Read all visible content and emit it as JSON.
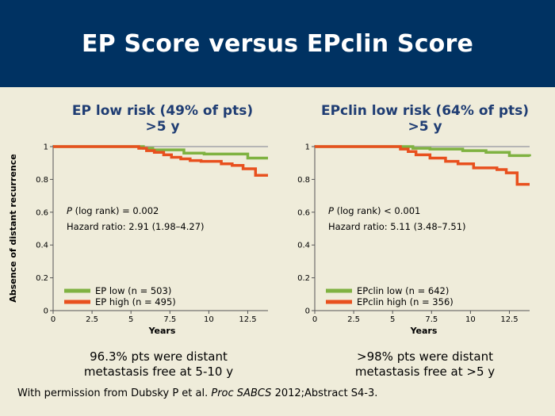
{
  "slide": {
    "title": "EP Score versus EPclin Score",
    "ylabel": "Absence of distant recurrence",
    "citation": {
      "prefix": "With permission from Dubsky P et al. ",
      "journal": "Proc SABCS",
      "suffix": " 2012;Abstract S4-3."
    }
  },
  "colors": {
    "low": "#7fb241",
    "high": "#e8501e",
    "header": "#003262"
  },
  "chart_data": [
    {
      "type": "line",
      "title_line1": "EP low risk (49% of pts)",
      "title_line2": ">5 y",
      "xlabel": "Years",
      "xlim": [
        0,
        13.8
      ],
      "ylim": [
        0,
        1
      ],
      "xticks": [
        0,
        2.5,
        5,
        7.5,
        10,
        12.5
      ],
      "xtick_labels": [
        "0",
        "2.5",
        "5",
        "7.5",
        "10",
        "12.5"
      ],
      "yticks": [
        0,
        0.2,
        0.4,
        0.6,
        0.8,
        1
      ],
      "ytick_labels": [
        "0",
        "0.2",
        "0.4",
        "0.6",
        "0.8",
        "1"
      ],
      "annotation_p_label": "P",
      "annotation_p_rest": " (log rank) = 0.002",
      "annotation_hr": "Hazard ratio: 2.91 (1.98–4.27)",
      "series": [
        {
          "name": "EP low (n = 503)",
          "key": "low",
          "x": [
            0,
            5,
            5.8,
            6.4,
            8.0,
            8.4,
            9.7,
            12.0,
            12.5,
            13.8
          ],
          "y": [
            1,
            1,
            0.99,
            0.98,
            0.98,
            0.96,
            0.955,
            0.955,
            0.93,
            0.93
          ]
        },
        {
          "name": "EP high (n = 495)",
          "key": "high",
          "x": [
            0,
            5,
            5.5,
            6.0,
            6.5,
            7.1,
            7.6,
            8.2,
            8.8,
            9.5,
            10.8,
            11.5,
            12.2,
            13.0,
            13.8
          ],
          "y": [
            1,
            1,
            0.99,
            0.975,
            0.965,
            0.95,
            0.935,
            0.925,
            0.915,
            0.91,
            0.895,
            0.885,
            0.865,
            0.825,
            0.825
          ]
        }
      ],
      "summary_line1": "96.3% pts were distant",
      "summary_line2": "metastasis free at 5-10 y"
    },
    {
      "type": "line",
      "title_line1": "EPclin low risk (64% of pts)",
      "title_line2": ">5 y",
      "xlabel": "Years",
      "xlim": [
        0,
        13.8
      ],
      "ylim": [
        0,
        1
      ],
      "xticks": [
        0,
        2.5,
        5,
        7.5,
        10,
        12.5
      ],
      "xtick_labels": [
        "0",
        "2.5",
        "5",
        "7.5",
        "10",
        "12.5"
      ],
      "yticks": [
        0,
        0.2,
        0.4,
        0.6,
        0.8,
        1
      ],
      "ytick_labels": [
        "0",
        "0.2",
        "0.4",
        "0.6",
        "0.8",
        "1"
      ],
      "annotation_p_label": "P",
      "annotation_p_rest": " (log rank) < 0.001",
      "annotation_hr": "Hazard ratio: 5.11 (3.48–7.51)",
      "series": [
        {
          "name": "EPclin low (n = 642)",
          "key": "low",
          "x": [
            0,
            5,
            6.3,
            7.4,
            9.5,
            11.0,
            12.5,
            13.8
          ],
          "y": [
            1,
            1,
            0.99,
            0.985,
            0.975,
            0.965,
            0.945,
            0.94
          ]
        },
        {
          "name": "EPclin high (n = 356)",
          "key": "high",
          "x": [
            0,
            5,
            5.5,
            6.0,
            6.5,
            7.4,
            8.4,
            9.2,
            10.2,
            11.7,
            12.3,
            13.0,
            13.8
          ],
          "y": [
            1,
            1,
            0.985,
            0.97,
            0.95,
            0.93,
            0.91,
            0.895,
            0.87,
            0.86,
            0.84,
            0.77,
            0.77
          ]
        }
      ],
      "summary_line1": ">98% pts were distant",
      "summary_line2": "metastasis free  at >5 y"
    }
  ]
}
